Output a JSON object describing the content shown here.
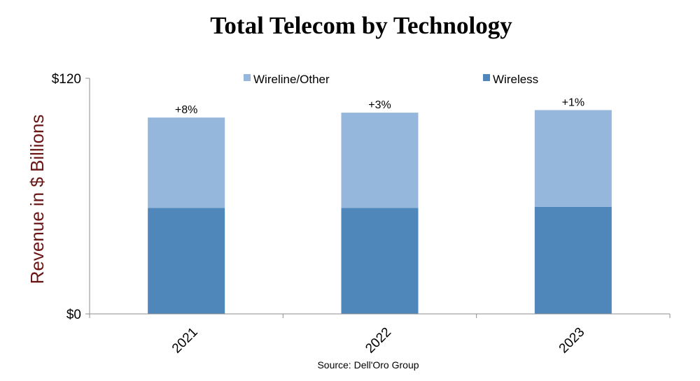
{
  "chart_data": {
    "type": "bar",
    "stacked": true,
    "title": "Total Telecom by Technology",
    "ylabel": "Revenue in $ Billions",
    "xlabel": "",
    "source": "Source: Dell'Oro Group",
    "categories": [
      "2021",
      "2022",
      "2023"
    ],
    "ylim": [
      0,
      120
    ],
    "y_tick_labels": [
      "$0",
      "$120"
    ],
    "y_tick_values": [
      0,
      120
    ],
    "grid": false,
    "legend_position": "top",
    "series": [
      {
        "name": "Wireless",
        "values": [
          54,
          54,
          54.5
        ],
        "color": "#4f87bb"
      },
      {
        "name": "Wireline/Other",
        "values": [
          46,
          48.5,
          49.3
        ],
        "color": "#95b7dc"
      }
    ],
    "growth_labels": [
      "+8%",
      "+3%",
      "+1%"
    ],
    "colors": {
      "title": "#000000",
      "ylabel": "#6b1515",
      "axis": "#8c8c8c"
    }
  }
}
